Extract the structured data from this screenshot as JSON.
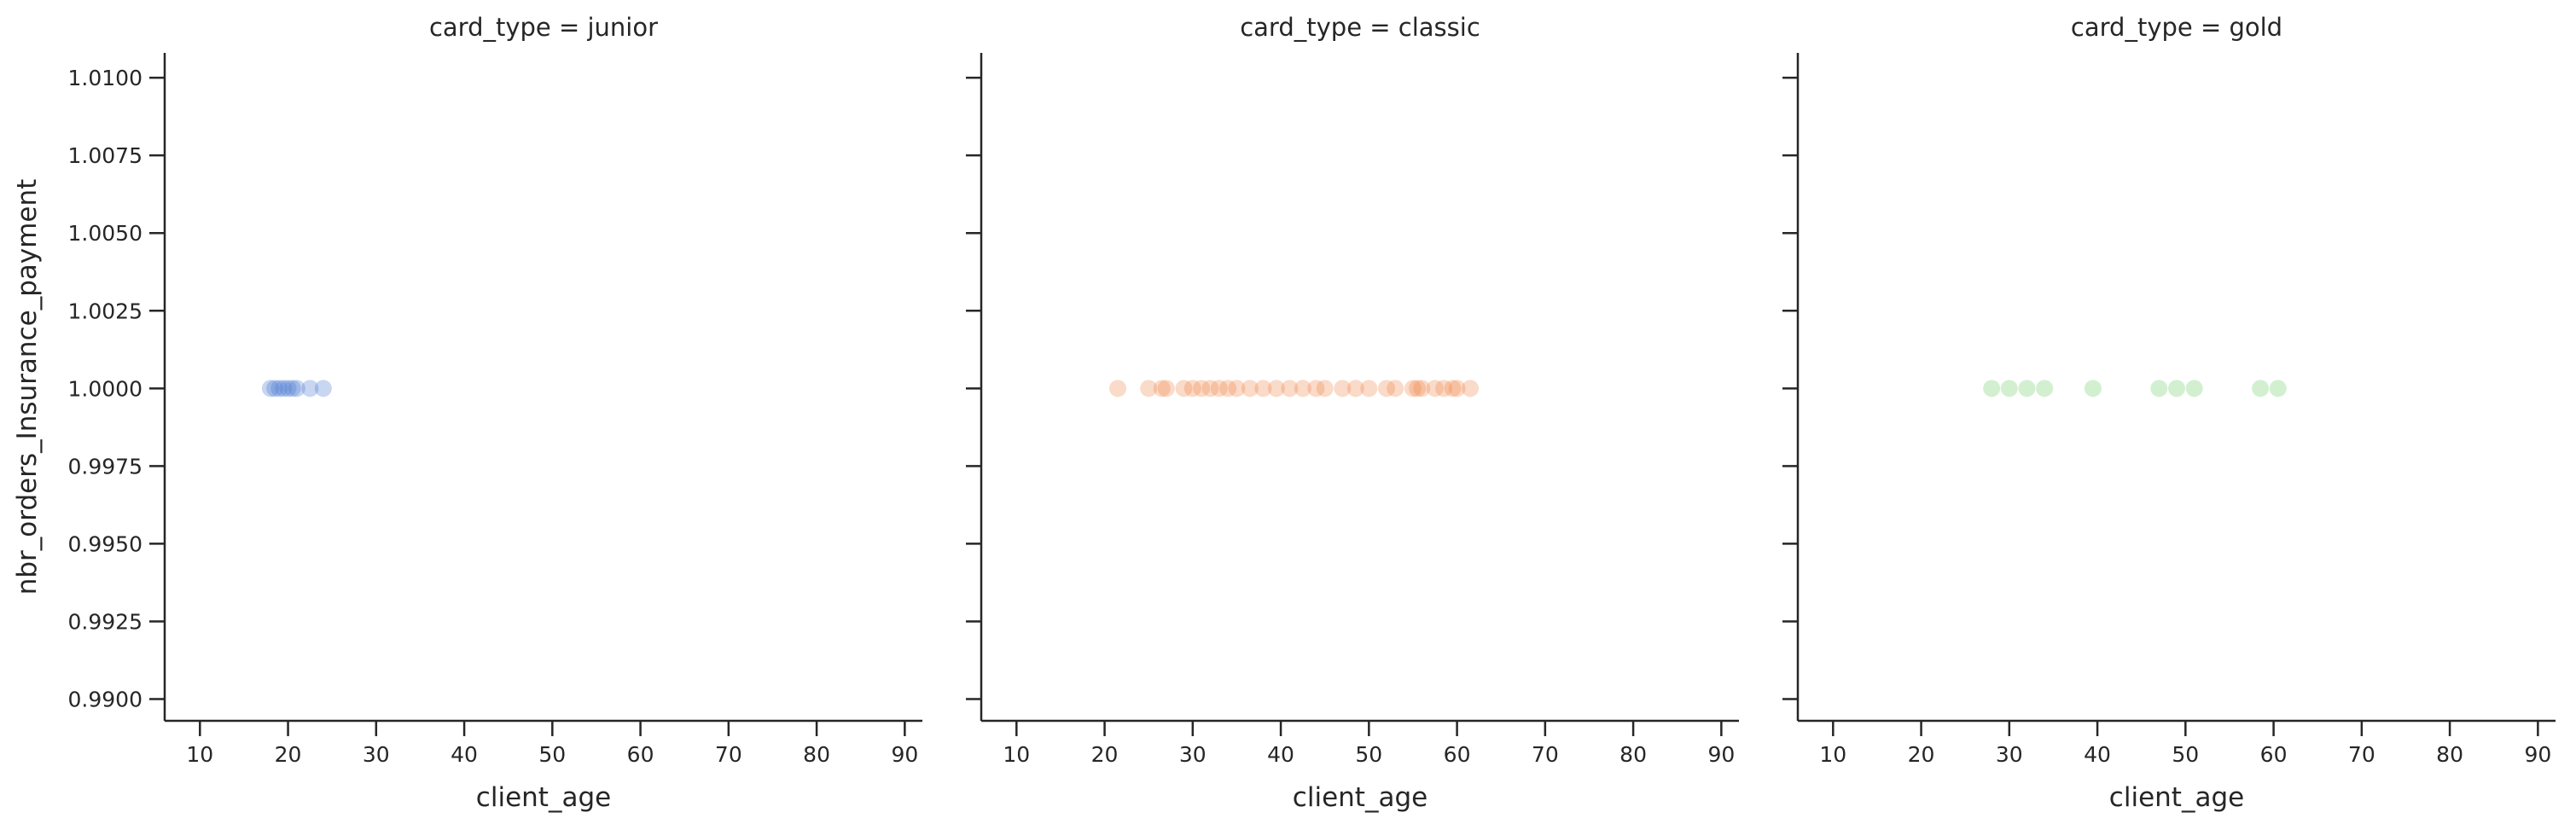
{
  "chart_data": {
    "type": "scatter",
    "facet_var": "card_type",
    "title_template": "card_type = {}",
    "xlabel": "client_age",
    "ylabel": "nbr_orders_Insurance_payment",
    "xlim": [
      6,
      92
    ],
    "ylim": [
      0.9893,
      1.0108
    ],
    "xticks": [
      10,
      20,
      30,
      40,
      50,
      60,
      70,
      80,
      90
    ],
    "yticks": [
      0.99,
      0.9925,
      0.995,
      0.9975,
      1.0,
      1.0025,
      1.005,
      1.0075,
      1.01
    ],
    "ytick_labels": [
      "0.9900",
      "0.9925",
      "0.9950",
      "0.9975",
      "1.0000",
      "1.0025",
      "1.0050",
      "1.0075",
      "1.0100"
    ],
    "grid": false,
    "point_alpha": 0.3,
    "panels": [
      {
        "title": "card_type = junior",
        "color": "#4878d0",
        "points": [
          {
            "x": 18,
            "y": 1.0
          },
          {
            "x": 18.5,
            "y": 1.0
          },
          {
            "x": 19,
            "y": 1.0
          },
          {
            "x": 19.5,
            "y": 1.0
          },
          {
            "x": 20,
            "y": 1.0
          },
          {
            "x": 20.5,
            "y": 1.0
          },
          {
            "x": 21,
            "y": 1.0
          },
          {
            "x": 22.5,
            "y": 1.0
          },
          {
            "x": 24,
            "y": 1.0
          }
        ]
      },
      {
        "title": "card_type = classic",
        "color": "#ee854a",
        "points": [
          {
            "x": 21.5,
            "y": 1.0
          },
          {
            "x": 25,
            "y": 1.0
          },
          {
            "x": 26.5,
            "y": 1.0
          },
          {
            "x": 27,
            "y": 1.0
          },
          {
            "x": 29,
            "y": 1.0
          },
          {
            "x": 30,
            "y": 1.0
          },
          {
            "x": 31,
            "y": 1.0
          },
          {
            "x": 32,
            "y": 1.0
          },
          {
            "x": 33,
            "y": 1.0
          },
          {
            "x": 34,
            "y": 1.0
          },
          {
            "x": 35,
            "y": 1.0
          },
          {
            "x": 36.5,
            "y": 1.0
          },
          {
            "x": 38,
            "y": 1.0
          },
          {
            "x": 39.5,
            "y": 1.0
          },
          {
            "x": 41,
            "y": 1.0
          },
          {
            "x": 42.5,
            "y": 1.0
          },
          {
            "x": 44,
            "y": 1.0
          },
          {
            "x": 45,
            "y": 1.0
          },
          {
            "x": 47,
            "y": 1.0
          },
          {
            "x": 48.5,
            "y": 1.0
          },
          {
            "x": 50,
            "y": 1.0
          },
          {
            "x": 52,
            "y": 1.0
          },
          {
            "x": 53,
            "y": 1.0
          },
          {
            "x": 55,
            "y": 1.0
          },
          {
            "x": 55.5,
            "y": 1.0
          },
          {
            "x": 56,
            "y": 1.0
          },
          {
            "x": 57.5,
            "y": 1.0
          },
          {
            "x": 58.5,
            "y": 1.0
          },
          {
            "x": 59.5,
            "y": 1.0
          },
          {
            "x": 60,
            "y": 1.0
          },
          {
            "x": 61.5,
            "y": 1.0
          }
        ]
      },
      {
        "title": "card_type = gold",
        "color": "#6acc64",
        "points": [
          {
            "x": 28,
            "y": 1.0
          },
          {
            "x": 30,
            "y": 1.0
          },
          {
            "x": 32,
            "y": 1.0
          },
          {
            "x": 34,
            "y": 1.0
          },
          {
            "x": 39.5,
            "y": 1.0
          },
          {
            "x": 47,
            "y": 1.0
          },
          {
            "x": 49,
            "y": 1.0
          },
          {
            "x": 51,
            "y": 1.0
          },
          {
            "x": 58.5,
            "y": 1.0
          },
          {
            "x": 60.5,
            "y": 1.0
          }
        ]
      }
    ]
  }
}
